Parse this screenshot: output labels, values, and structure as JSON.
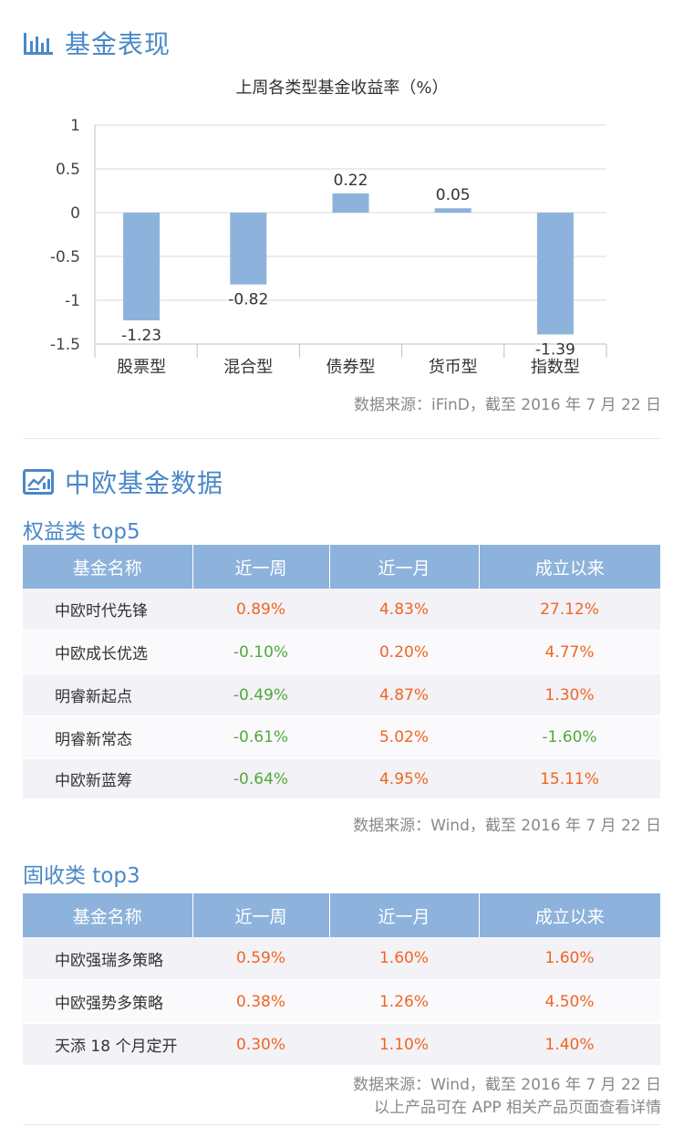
{
  "section1": {
    "title": "基金表现",
    "icon": "bar-chart-icon"
  },
  "chart_data": {
    "type": "bar",
    "title": "上周各类型基金收益率（%）",
    "categories": [
      "股票型",
      "混合型",
      "债券型",
      "货币型",
      "指数型"
    ],
    "values": [
      -1.23,
      -0.82,
      0.22,
      0.05,
      -1.39
    ],
    "value_labels": [
      "-1.23",
      "-0.82",
      "0.22",
      "0.05",
      "-1.39"
    ],
    "ylim": [
      -1.5,
      1
    ],
    "yticks": [
      1,
      0.5,
      0,
      -0.5,
      -1,
      -1.5
    ],
    "ytick_labels": [
      "1",
      "0.5",
      "0",
      "-0.5",
      "-1",
      "-1.5"
    ],
    "grid": true,
    "bar_color": "#8db3dc"
  },
  "chart_source": "数据来源：iFinD，截至 2016 年 7 月 22 日",
  "section2": {
    "title": "中欧基金数据",
    "icon": "data-board-icon"
  },
  "equity": {
    "title": "权益类 top5",
    "headers": [
      "基金名称",
      "近一周",
      "近一月",
      "成立以来"
    ],
    "rows": [
      [
        "中欧时代先锋",
        "0.89%",
        "4.83%",
        "27.12%"
      ],
      [
        "中欧成长优选",
        "-0.10%",
        "0.20%",
        "4.77%"
      ],
      [
        "明睿新起点",
        "-0.49%",
        "4.87%",
        "1.30%"
      ],
      [
        "明睿新常态",
        "-0.61%",
        "5.02%",
        "-1.60%"
      ],
      [
        "中欧新蓝筹",
        "-0.64%",
        "4.95%",
        "15.11%"
      ]
    ],
    "source": "数据来源：Wind，截至 2016 年 7 月 22 日"
  },
  "fixed": {
    "title": "固收类 top3",
    "headers": [
      "基金名称",
      "近一周",
      "近一月",
      "成立以来"
    ],
    "rows": [
      [
        "中欧强瑞多策略",
        "0.59%",
        "1.60%",
        "1.60%"
      ],
      [
        "中欧强势多策略",
        "0.38%",
        "1.26%",
        "4.50%"
      ],
      [
        "天添 18 个月定开",
        "0.30%",
        "1.10%",
        "1.40%"
      ]
    ],
    "source": "数据来源：Wind，截至 2016 年 7 月 22 日",
    "note": "以上产品可在 APP 相关产品页面查看详情"
  },
  "colors": {
    "accent": "#4a88c8",
    "positive": "#f26522",
    "negative": "#52a83c",
    "header_bg": "#8db3dc"
  }
}
